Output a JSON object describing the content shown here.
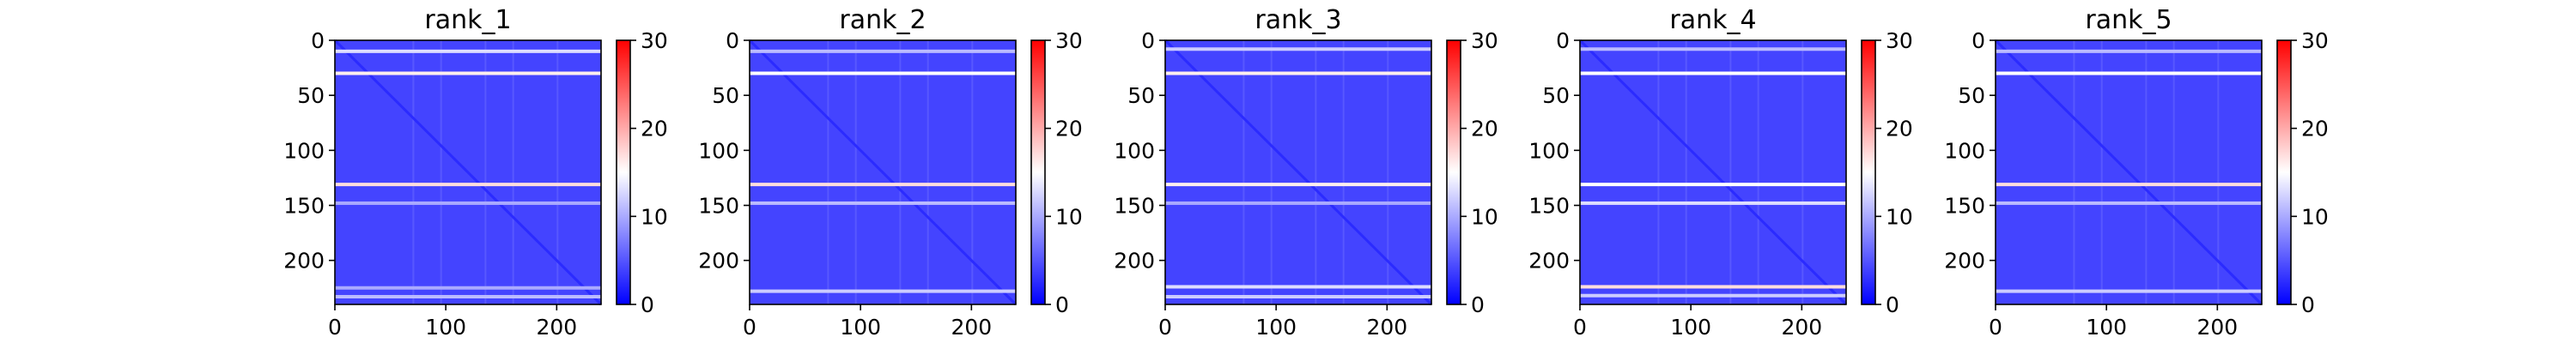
{
  "chart_data": {
    "type": "heatmap",
    "colormap": "bwr",
    "colormap_stops": [
      "#0000ff",
      "#ffffff",
      "#ff0000"
    ],
    "matrix_size": 240,
    "color_range": [
      0,
      30
    ],
    "background_level": 4,
    "diagonal_level": 2.5,
    "x_ticks": [
      0,
      100,
      200
    ],
    "y_ticks": [
      0,
      50,
      100,
      150,
      200
    ],
    "colorbar_ticks": [
      0,
      10,
      20,
      30
    ],
    "panels": [
      {
        "title": "rank_1",
        "bright_rows": [
          {
            "row": 10,
            "value": 13
          },
          {
            "row": 30,
            "value": 16
          },
          {
            "row": 131,
            "value": 17
          },
          {
            "row": 148,
            "value": 10
          },
          {
            "row": 225,
            "value": 10
          },
          {
            "row": 233,
            "value": 11
          }
        ]
      },
      {
        "title": "rank_2",
        "bright_rows": [
          {
            "row": 10,
            "value": 11
          },
          {
            "row": 30,
            "value": 15
          },
          {
            "row": 131,
            "value": 17
          },
          {
            "row": 148,
            "value": 11
          },
          {
            "row": 228,
            "value": 12
          }
        ]
      },
      {
        "title": "rank_3",
        "bright_rows": [
          {
            "row": 8,
            "value": 12
          },
          {
            "row": 30,
            "value": 16
          },
          {
            "row": 131,
            "value": 16
          },
          {
            "row": 148,
            "value": 10
          },
          {
            "row": 224,
            "value": 13
          },
          {
            "row": 233,
            "value": 12
          }
        ]
      },
      {
        "title": "rank_4",
        "bright_rows": [
          {
            "row": 8,
            "value": 11
          },
          {
            "row": 30,
            "value": 15
          },
          {
            "row": 131,
            "value": 15
          },
          {
            "row": 148,
            "value": 13
          },
          {
            "row": 224,
            "value": 17
          },
          {
            "row": 232,
            "value": 12
          }
        ]
      },
      {
        "title": "rank_5",
        "bright_rows": [
          {
            "row": 10,
            "value": 11
          },
          {
            "row": 30,
            "value": 15
          },
          {
            "row": 131,
            "value": 17
          },
          {
            "row": 148,
            "value": 11
          },
          {
            "row": 228,
            "value": 12
          }
        ]
      }
    ]
  }
}
